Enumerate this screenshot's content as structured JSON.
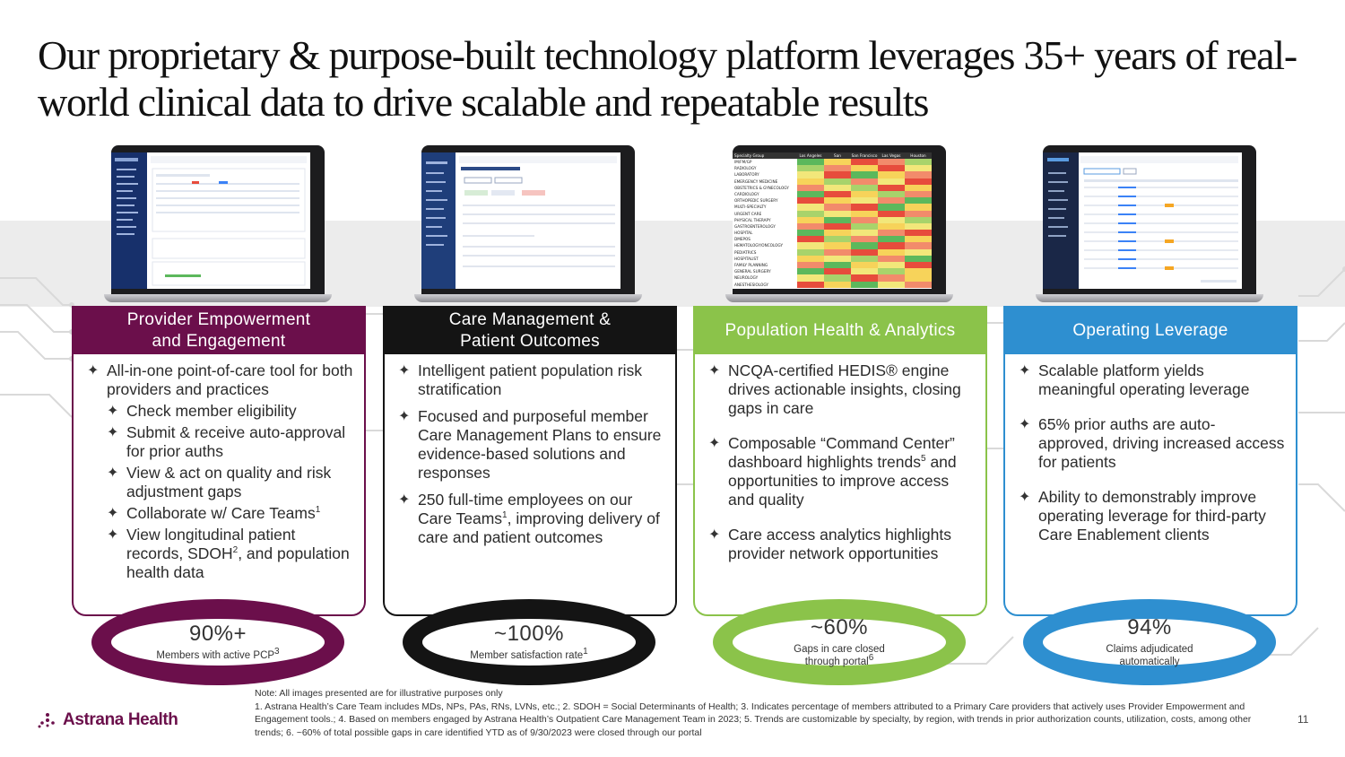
{
  "title": "Our proprietary & purpose-built technology platform leverages 35+ years of real-world clinical data to drive scalable and repeatable results",
  "heatmap": {
    "header": [
      "Specialty Group",
      "Los Angeles",
      "San Bernardino",
      "San Francisco",
      "Las Vegas",
      "Houston"
    ],
    "rows": [
      "IM/FM/GP",
      "RADIOLOGY",
      "LABORATORY",
      "EMERGENCY MEDICINE",
      "OBSTETRICS & GYNECOLOGY",
      "CARDIOLOGY",
      "ORTHOPEDIC SURGERY",
      "MULTI-SPECIALTY",
      "URGENT CARE",
      "PHYSICAL THERAPY",
      "GASTROENTEROLOGY",
      "HOSPITAL",
      "DMEPOS",
      "HEMATOLOGY/ONCOLOGY",
      "PEDIATRICS",
      "HOSPITALIST",
      "FAMILY PLANNING",
      "GENERAL SURGERY",
      "NEUROLOGY",
      "ANESTHESIOLOGY"
    ],
    "colors": [
      "#e74c3c",
      "#f28b6b",
      "#f7d35a",
      "#f2e77a",
      "#a8d36b",
      "#5cb85c"
    ]
  },
  "columns": [
    {
      "title_line1": "Provider Empowerment",
      "title_line2": "and Engagement",
      "color": "#6b0f4b",
      "bullets": [
        {
          "t": "All-in-one point-of-care tool for both providers and practices"
        },
        {
          "t": "Check member eligibility"
        },
        {
          "t": "Submit & receive auto-approval for prior auths"
        },
        {
          "t": "View & act on quality and risk adjustment gaps"
        },
        {
          "t": "Collaborate w/ Care Teams",
          "sup": "1"
        },
        {
          "t": "View longitudinal patient records, SDOH",
          "sup": "2",
          "after": ", and population health data"
        }
      ],
      "stat_value": "90%+",
      "stat_label": "Members with active PCP",
      "stat_sup": "3"
    },
    {
      "title_line1": "Care Management &",
      "title_line2": "Patient Outcomes",
      "color": "#141414",
      "bullets": [
        {
          "t": "Intelligent patient population risk stratification"
        },
        {
          "t": "Focused and purposeful member Care Management Plans to ensure evidence-based solutions and responses"
        },
        {
          "t": "250 full-time employees on our Care Teams",
          "sup": "1",
          "after": ", improving delivery of care and patient outcomes"
        }
      ],
      "stat_value": "~100%",
      "stat_label": "Member satisfaction rate",
      "stat_sup": "1"
    },
    {
      "title_line1": "Population Health & Analytics",
      "title_line2": "",
      "color": "#8bc34a",
      "bullets": [
        {
          "t": "NCQA-certified HEDIS® engine drives actionable insights, closing gaps in care"
        },
        {
          "t": "Composable “Command Center” dashboard highlights trends",
          "sup": "5",
          "after": " and opportunities to improve access and quality"
        },
        {
          "t": "Care access analytics highlights provider network opportunities"
        }
      ],
      "stat_value": "~60%",
      "stat_label": "Gaps in care closed through portal",
      "stat_sup": "6"
    },
    {
      "title_line1": "Operating Leverage",
      "title_line2": "",
      "color": "#2e8fd0",
      "bullets": [
        {
          "t": "Scalable platform yields meaningful operating leverage"
        },
        {
          "t": "65% prior auths are auto-approved, driving increased access for patients"
        },
        {
          "t": "Ability to demonstrably improve operating leverage for third-party Care Enablement clients"
        }
      ],
      "stat_value": "94%",
      "stat_label": "Claims adjudicated automatically",
      "stat_sup": ""
    }
  ],
  "logo": "Astrana Health",
  "notes": {
    "line1": "Note: All images presented are for illustrative purposes only",
    "line2": "1. Astrana Health’s Care Team includes MDs, NPs, PAs, RNs, LVNs, etc.; 2. SDOH = Social Determinants of Health; 3. Indicates percentage of members attributed to a Primary Care providers that actively uses Provider Empowerment and Engagement tools.; 4. Based on members engaged by Astrana Health’s Outpatient Care Management Team in 2023; 5. Trends are customizable by specialty, by region, with trends in prior authorization counts, utilization, costs, among other trends; 6. ~60% of total possible gaps in care identified YTD as of 9/30/2023 were closed through our portal"
  },
  "page_number": "11"
}
